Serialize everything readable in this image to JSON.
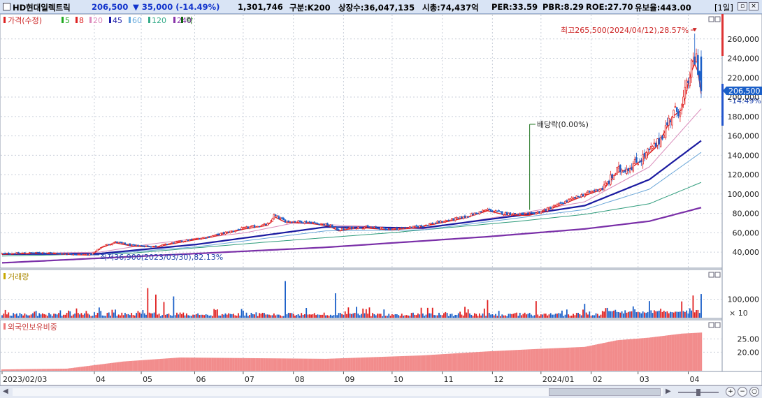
{
  "header": {
    "stock_name": "HD현대일렉트릭",
    "price": "206,500",
    "change": "▼ 35,000 (-14.49%)",
    "volume": "1,301,746",
    "index_group": "구분:K200",
    "shares": "상장수:36,047,135",
    "market_cap": "시총:74,437억",
    "per": "PER:33.59",
    "pbr": "PBR:8.29",
    "roe": "ROE:27.70",
    "float_rate": "유보율:443.00",
    "period_button": "[1일]"
  },
  "price_panel": {
    "legend_title": "가격(수정)",
    "ma_legend": [
      {
        "label": "5",
        "color": "#22aa22"
      },
      {
        "label": "8",
        "color": "#dd2222"
      },
      {
        "label": "20",
        "color": "#dd88bb"
      },
      {
        "label": "45",
        "color": "#1a1aa8"
      },
      {
        "label": "60",
        "color": "#66aadd"
      },
      {
        "label": "120",
        "color": "#33aa88"
      },
      {
        "label": "240",
        "color": "#8833aa"
      }
    ],
    "ex_div_legend": "락",
    "high_note": "최고265,500(2024/04/12),28.57%",
    "low_note": "최저36,900(2023/03/30),82.13%",
    "dividend_note": "배당락(0.00%)",
    "current_price_tag": "206,500",
    "current_change_tag": "-14.49%"
  },
  "volume_panel": {
    "title": "거래량",
    "unit_label": "× 10"
  },
  "foreign_panel": {
    "title": "외국인보유비중"
  },
  "chart_data": [
    {
      "type": "candlestick",
      "title": "가격(수정)",
      "y_ticks": [
        40000,
        60000,
        80000,
        100000,
        120000,
        140000,
        160000,
        180000,
        200000,
        220000,
        240000,
        260000
      ],
      "y_tick_labels": [
        "40,000",
        "60,000",
        "80,000",
        "100,000",
        "120,000",
        "140,000",
        "160,000",
        "180,000",
        "200,000",
        "220,000",
        "240,000",
        "260,000"
      ],
      "ylim": [
        25000,
        280000
      ],
      "x_tick_labels": [
        "2023/02/03",
        "04",
        "05",
        "06",
        "07",
        "08",
        "09",
        "10",
        "11",
        "12",
        "2024/01",
        "02",
        "03",
        "04"
      ],
      "x_tick_days": [
        0,
        57,
        86,
        119,
        149,
        180,
        211,
        241,
        272,
        303,
        333,
        364,
        393,
        424
      ],
      "close_anchors": [
        [
          0,
          38500
        ],
        [
          25,
          39500
        ],
        [
          45,
          38000
        ],
        [
          55,
          37500
        ],
        [
          62,
          46000
        ],
        [
          70,
          50500
        ],
        [
          80,
          47000
        ],
        [
          95,
          46000
        ],
        [
          110,
          51000
        ],
        [
          128,
          56000
        ],
        [
          150,
          65000
        ],
        [
          165,
          69000
        ],
        [
          168,
          78000
        ],
        [
          175,
          72000
        ],
        [
          190,
          71000
        ],
        [
          202,
          68000
        ],
        [
          208,
          63000
        ],
        [
          215,
          65000
        ],
        [
          225,
          66000
        ],
        [
          240,
          64000
        ],
        [
          255,
          66000
        ],
        [
          270,
          71000
        ],
        [
          285,
          76000
        ],
        [
          300,
          84000
        ],
        [
          310,
          80000
        ],
        [
          325,
          79000
        ],
        [
          333,
          82000
        ],
        [
          345,
          90000
        ],
        [
          360,
          100000
        ],
        [
          372,
          107000
        ],
        [
          380,
          124000
        ],
        [
          388,
          128000
        ],
        [
          396,
          138000
        ],
        [
          405,
          152000
        ],
        [
          414,
          182000
        ],
        [
          420,
          190000
        ],
        [
          426,
          230000
        ],
        [
          429,
          241500
        ],
        [
          432,
          206500
        ]
      ],
      "high_point": {
        "date": "2024/04/12",
        "value": 265500
      },
      "low_point": {
        "date": "2023/03/30",
        "value": 36900
      },
      "last_close": 206500,
      "moving_averages": {
        "ma45_anchors": [
          [
            0,
            38000
          ],
          [
            60,
            38500
          ],
          [
            120,
            48000
          ],
          [
            200,
            66000
          ],
          [
            260,
            65000
          ],
          [
            320,
            78000
          ],
          [
            360,
            88000
          ],
          [
            400,
            115000
          ],
          [
            432,
            155000
          ]
        ],
        "ma60_anchors": [
          [
            0,
            37500
          ],
          [
            60,
            37800
          ],
          [
            120,
            45500
          ],
          [
            200,
            62000
          ],
          [
            260,
            63000
          ],
          [
            320,
            75500
          ],
          [
            360,
            84000
          ],
          [
            400,
            105000
          ],
          [
            432,
            143000
          ]
        ],
        "ma120_anchors": [
          [
            0,
            36000
          ],
          [
            80,
            39000
          ],
          [
            160,
            50000
          ],
          [
            240,
            60000
          ],
          [
            320,
            72000
          ],
          [
            360,
            79000
          ],
          [
            400,
            90000
          ],
          [
            432,
            112000
          ]
        ],
        "ma240_anchors": [
          [
            0,
            29000
          ],
          [
            100,
            37000
          ],
          [
            200,
            45000
          ],
          [
            300,
            56000
          ],
          [
            360,
            64000
          ],
          [
            400,
            72000
          ],
          [
            432,
            86000
          ]
        ],
        "ma20_anchors": [
          [
            0,
            38500
          ],
          [
            60,
            40000
          ],
          [
            90,
            48000
          ],
          [
            150,
            60000
          ],
          [
            180,
            70000
          ],
          [
            260,
            64000
          ],
          [
            320,
            80000
          ],
          [
            360,
            92000
          ],
          [
            400,
            128000
          ],
          [
            432,
            188000
          ]
        ]
      },
      "dividend_marker_day": 326
    },
    {
      "type": "bar",
      "title": "거래량",
      "y_ticks": [
        100000
      ],
      "y_tick_labels": [
        "100,000"
      ],
      "ylim": [
        0,
        200000
      ],
      "spikes": [
        [
          90,
          160000
        ],
        [
          95,
          125000
        ],
        [
          100,
          85000
        ],
        [
          106,
          115000
        ],
        [
          175,
          198000
        ],
        [
          206,
          132000
        ],
        [
          300,
          95000
        ],
        [
          330,
          90000
        ],
        [
          360,
          75000
        ],
        [
          400,
          90000
        ],
        [
          420,
          88000
        ],
        [
          427,
          120000
        ],
        [
          432,
          128000
        ]
      ]
    },
    {
      "type": "area",
      "title": "외국인보유비중",
      "y_ticks": [
        20,
        25
      ],
      "y_tick_labels": [
        "20.00",
        "25.00"
      ],
      "ylim": [
        13,
        28
      ],
      "anchors": [
        [
          0,
          13.5
        ],
        [
          40,
          13.8
        ],
        [
          75,
          16.5
        ],
        [
          110,
          18.0
        ],
        [
          200,
          17.5
        ],
        [
          260,
          18.8
        ],
        [
          300,
          20.3
        ],
        [
          330,
          21.2
        ],
        [
          360,
          22.0
        ],
        [
          380,
          24.5
        ],
        [
          400,
          25.5
        ],
        [
          420,
          27.0
        ],
        [
          432,
          27.4
        ]
      ]
    }
  ]
}
